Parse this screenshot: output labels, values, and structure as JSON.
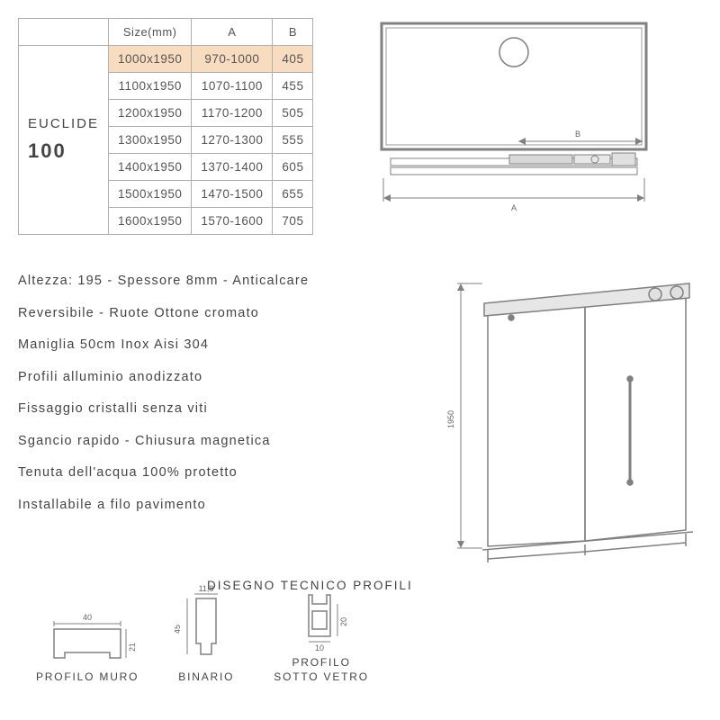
{
  "table": {
    "headers": {
      "size": "Size(mm)",
      "a": "A",
      "b": "B"
    },
    "model_name": "EUCLIDE",
    "model_num": "100",
    "rows": [
      {
        "size": "1000x1950",
        "a": "970-1000",
        "b": "405",
        "highlight": true
      },
      {
        "size": "1100x1950",
        "a": "1070-1100",
        "b": "455",
        "highlight": false
      },
      {
        "size": "1200x1950",
        "a": "1170-1200",
        "b": "505",
        "highlight": false
      },
      {
        "size": "1300x1950",
        "a": "1270-1300",
        "b": "555",
        "highlight": false
      },
      {
        "size": "1400x1950",
        "a": "1370-1400",
        "b": "605",
        "highlight": false
      },
      {
        "size": "1500x1950",
        "a": "1470-1500",
        "b": "655",
        "highlight": false
      },
      {
        "size": "1600x1950",
        "a": "1570-1600",
        "b": "705",
        "highlight": false
      }
    ]
  },
  "top_diagram": {
    "dim_a": "A",
    "dim_b": "B"
  },
  "door_diagram": {
    "height_label": "1950"
  },
  "features": {
    "lines": [
      "Altezza: 195 - Spessore 8mm - Anticalcare",
      "Reversibile - Ruote Ottone cromato",
      "Maniglia 50cm Inox Aisi 304",
      "Profili alluminio anodizzato",
      "Fissaggio cristalli senza viti",
      "Sgancio rapido - Chiusura magnetica",
      "Tenuta dell'acqua 100% protetto",
      "Installabile a filo pavimento"
    ]
  },
  "profiles": {
    "title": "DISEGNO TECNICO PROFILI",
    "muro": {
      "label": "PROFILO MURO",
      "w": "40",
      "h": "21"
    },
    "binario": {
      "label": "BINARIO",
      "w": "11,8",
      "h": "45"
    },
    "sotto": {
      "label1": "PROFILO",
      "label2": "SOTTO VETRO",
      "w": "10",
      "h": "20"
    }
  },
  "colors": {
    "stroke": "#808080",
    "stroke_light": "#9a9a9a",
    "highlight_bg": "#f7dcc0",
    "text": "#555555"
  }
}
